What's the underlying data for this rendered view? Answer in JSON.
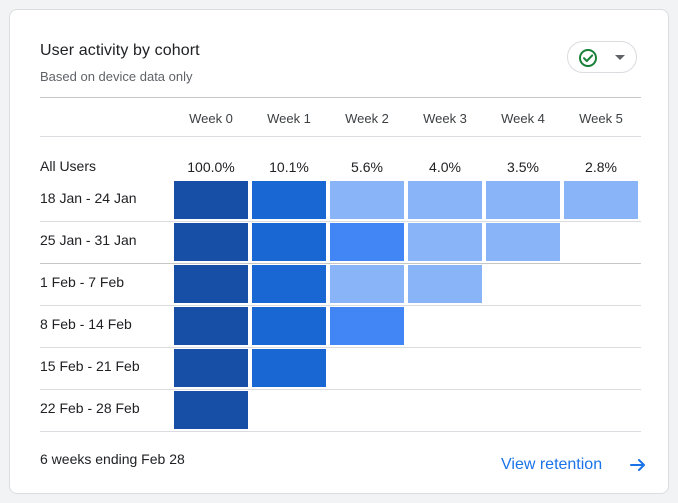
{
  "card": {
    "title": "User activity by cohort",
    "subtitle": "Based on device data only",
    "status_icon": "check-circle-icon",
    "status_color": "#188038"
  },
  "columns": [
    "Week 0",
    "Week 1",
    "Week 2",
    "Week 3",
    "Week 4",
    "Week 5"
  ],
  "all_users": {
    "label": "All Users",
    "values": [
      "100.0%",
      "10.1%",
      "5.6%",
      "4.0%",
      "3.5%",
      "2.8%"
    ]
  },
  "cohorts": [
    {
      "label": "18 Jan - 24 Jan",
      "levels": [
        4,
        3,
        1,
        1,
        1,
        1
      ]
    },
    {
      "label": "25 Jan - 31 Jan",
      "levels": [
        4,
        3,
        2,
        1,
        1
      ]
    },
    {
      "label": "1 Feb - 7 Feb",
      "levels": [
        4,
        3,
        1,
        1
      ]
    },
    {
      "label": "8 Feb - 14 Feb",
      "levels": [
        4,
        3,
        2
      ]
    },
    {
      "label": "15 Feb - 21 Feb",
      "levels": [
        4,
        3
      ]
    },
    {
      "label": "22 Feb - 28 Feb",
      "levels": [
        4
      ]
    }
  ],
  "heat_colors": {
    "1": "#8ab4f8",
    "2": "#4285f4",
    "3": "#1967d2",
    "4": "#174ea6"
  },
  "footer": {
    "range_text": "6 weeks ending Feb 28",
    "link_label": "View retention",
    "link_icon": "arrow-right-icon",
    "link_color": "#1a73e8"
  }
}
